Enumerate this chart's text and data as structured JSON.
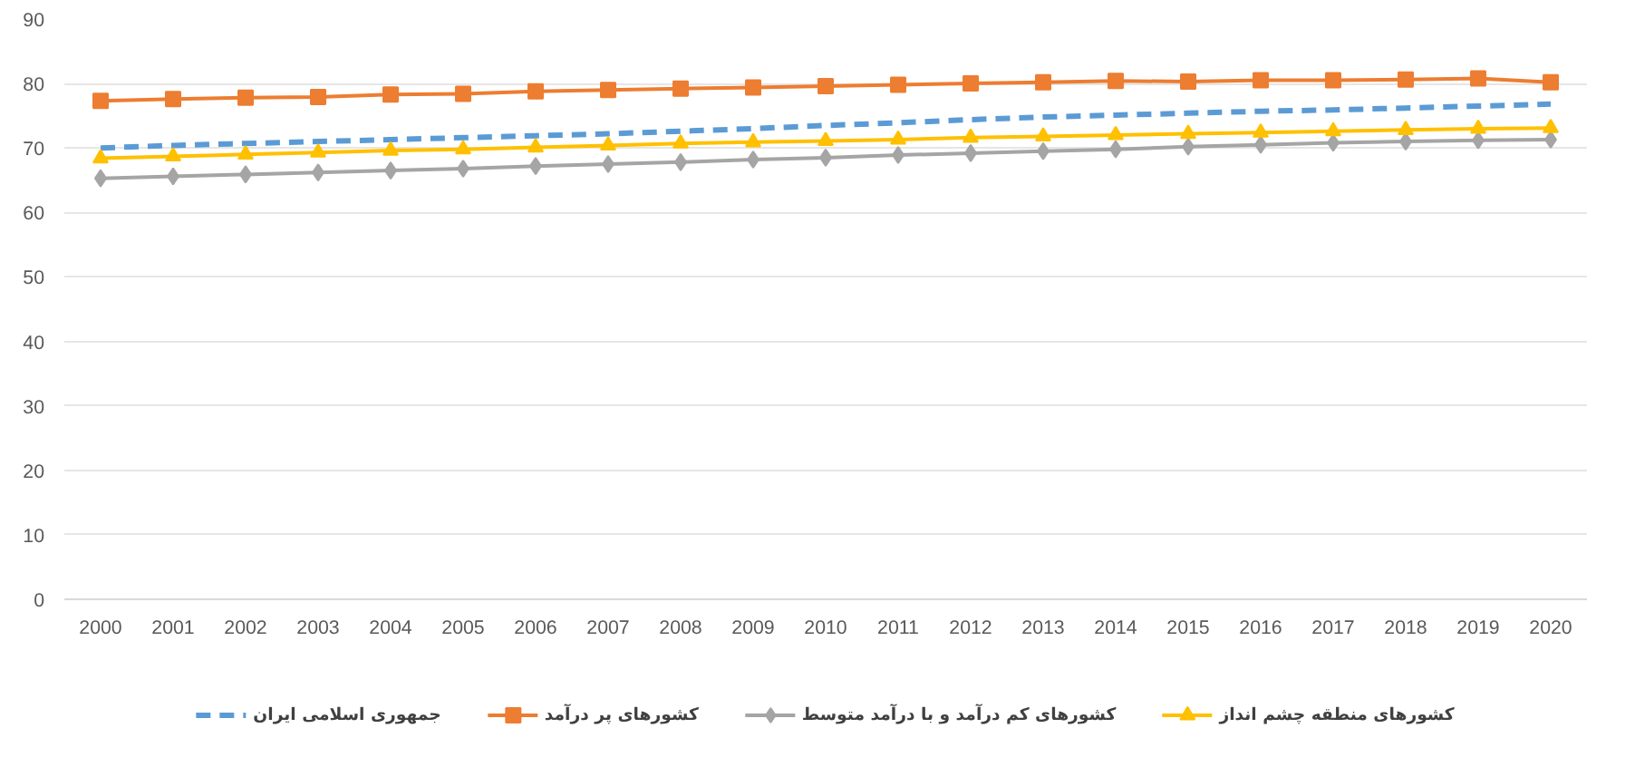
{
  "chart_data": {
    "type": "line",
    "categories": [
      "2000",
      "2001",
      "2002",
      "2003",
      "2004",
      "2005",
      "2006",
      "2007",
      "2008",
      "2009",
      "2010",
      "2011",
      "2012",
      "2013",
      "2014",
      "2015",
      "2016",
      "2017",
      "2018",
      "2019",
      "2020"
    ],
    "ylim": [
      0,
      90
    ],
    "yticks": [
      0,
      10,
      20,
      30,
      40,
      50,
      60,
      70,
      80,
      90
    ],
    "grid": "y",
    "legend": "bottom",
    "series": [
      {
        "name": "جمهوری اسلامی ایران",
        "color": "#5b9bd5",
        "line_style": "dashed",
        "marker": "none",
        "values": [
          70.0,
          70.4,
          70.7,
          71.0,
          71.3,
          71.6,
          71.9,
          72.2,
          72.6,
          73.0,
          73.5,
          73.9,
          74.4,
          74.8,
          75.1,
          75.4,
          75.7,
          75.9,
          76.2,
          76.5,
          76.8
        ]
      },
      {
        "name": "کشورهای پر درآمد",
        "color": "#ed7d31",
        "line_style": "solid",
        "marker": "square",
        "values": [
          77.3,
          77.6,
          77.8,
          77.9,
          78.3,
          78.4,
          78.8,
          79.0,
          79.2,
          79.4,
          79.6,
          79.8,
          80.0,
          80.2,
          80.4,
          80.3,
          80.5,
          80.5,
          80.6,
          80.8,
          80.2
        ]
      },
      {
        "name": "کشورهای کم درآمد و با درآمد متوسط",
        "color": "#a5a5a5",
        "line_style": "solid",
        "marker": "diamond",
        "values": [
          65.3,
          65.6,
          65.9,
          66.2,
          66.5,
          66.8,
          67.2,
          67.5,
          67.8,
          68.2,
          68.5,
          68.9,
          69.2,
          69.5,
          69.8,
          70.2,
          70.5,
          70.8,
          71.0,
          71.2,
          71.3
        ]
      },
      {
        "name": "کشورهای منطقه چشم انداز",
        "color": "#ffc000",
        "line_style": "solid",
        "marker": "triangle",
        "values": [
          68.4,
          68.7,
          69.0,
          69.3,
          69.6,
          69.8,
          70.1,
          70.4,
          70.7,
          70.9,
          71.1,
          71.3,
          71.6,
          71.8,
          72.0,
          72.2,
          72.4,
          72.6,
          72.8,
          73.0,
          73.1
        ]
      }
    ]
  }
}
